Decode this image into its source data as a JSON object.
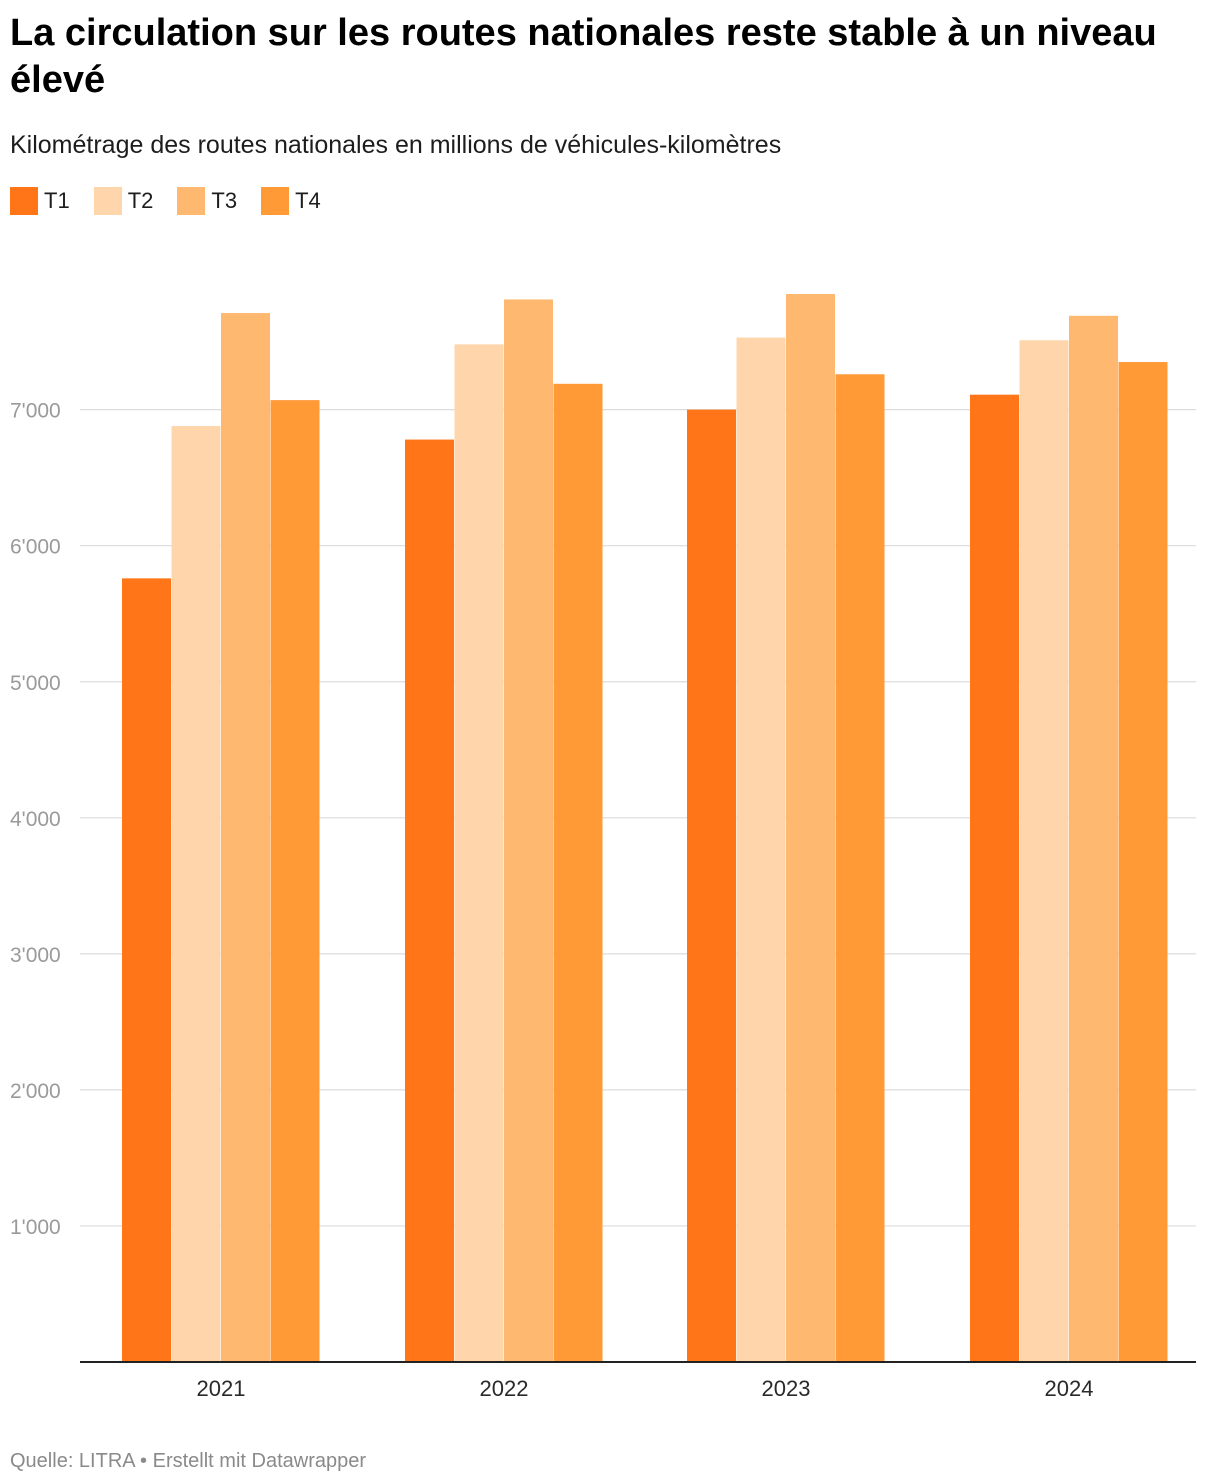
{
  "header": {
    "title": "La circulation sur les routes nationales reste stable à un niveau élevé",
    "subtitle": "Kilométrage des routes nationales en millions de véhicules-kilomètres"
  },
  "footer": {
    "source_text": "Quelle: LITRA • Erstellt mit Datawrapper"
  },
  "colors": {
    "T1": "#ff7518",
    "T2": "#ffd6ab",
    "T3": "#ffb870",
    "T4": "#ff9a36",
    "gridline": "#dcdcdc",
    "baseline": "#222222"
  },
  "chart_data": {
    "type": "bar",
    "title": "La circulation sur les routes nationales reste stable à un niveau élevé",
    "subtitle": "Kilométrage des routes nationales en millions de véhicules-kilomètres",
    "xlabel": "",
    "ylabel": "",
    "ylim": [
      0,
      8000
    ],
    "grid": true,
    "legend_position": "top-left",
    "categories": [
      "2021",
      "2022",
      "2023",
      "2024"
    ],
    "yticks": [
      {
        "value": 1000,
        "label": "1'000"
      },
      {
        "value": 2000,
        "label": "2'000"
      },
      {
        "value": 3000,
        "label": "3'000"
      },
      {
        "value": 4000,
        "label": "4'000"
      },
      {
        "value": 5000,
        "label": "5'000"
      },
      {
        "value": 6000,
        "label": "6'000"
      },
      {
        "value": 7000,
        "label": "7'000"
      }
    ],
    "series": [
      {
        "name": "T1",
        "values": [
          5760,
          6780,
          7000,
          7110
        ]
      },
      {
        "name": "T2",
        "values": [
          6880,
          7480,
          7530,
          7510
        ]
      },
      {
        "name": "T3",
        "values": [
          7710,
          7810,
          7850,
          7690
        ]
      },
      {
        "name": "T4",
        "values": [
          7070,
          7190,
          7260,
          7350
        ]
      }
    ]
  }
}
